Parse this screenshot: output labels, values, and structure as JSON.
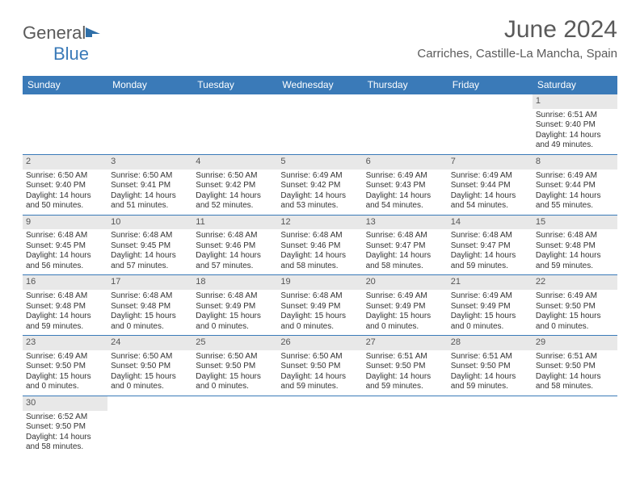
{
  "logo": {
    "textA": "General",
    "textB": "Blue"
  },
  "title": "June 2024",
  "location": "Carriches, Castille-La Mancha, Spain",
  "colors": {
    "header_bg": "#3a7ab8",
    "header_text": "#ffffff",
    "daynum_bg": "#e8e8e8",
    "body_text": "#333333",
    "title_text": "#5a5a5a",
    "row_border": "#3a7ab8"
  },
  "fonts": {
    "title_size": 30,
    "location_size": 15,
    "header_size": 12,
    "cell_size": 10
  },
  "dayNames": [
    "Sunday",
    "Monday",
    "Tuesday",
    "Wednesday",
    "Thursday",
    "Friday",
    "Saturday"
  ],
  "weeks": [
    [
      null,
      null,
      null,
      null,
      null,
      null,
      {
        "d": "1",
        "sr": "Sunrise: 6:51 AM",
        "ss": "Sunset: 9:40 PM",
        "dl": "Daylight: 14 hours and 49 minutes."
      }
    ],
    [
      {
        "d": "2",
        "sr": "Sunrise: 6:50 AM",
        "ss": "Sunset: 9:40 PM",
        "dl": "Daylight: 14 hours and 50 minutes."
      },
      {
        "d": "3",
        "sr": "Sunrise: 6:50 AM",
        "ss": "Sunset: 9:41 PM",
        "dl": "Daylight: 14 hours and 51 minutes."
      },
      {
        "d": "4",
        "sr": "Sunrise: 6:50 AM",
        "ss": "Sunset: 9:42 PM",
        "dl": "Daylight: 14 hours and 52 minutes."
      },
      {
        "d": "5",
        "sr": "Sunrise: 6:49 AM",
        "ss": "Sunset: 9:42 PM",
        "dl": "Daylight: 14 hours and 53 minutes."
      },
      {
        "d": "6",
        "sr": "Sunrise: 6:49 AM",
        "ss": "Sunset: 9:43 PM",
        "dl": "Daylight: 14 hours and 54 minutes."
      },
      {
        "d": "7",
        "sr": "Sunrise: 6:49 AM",
        "ss": "Sunset: 9:44 PM",
        "dl": "Daylight: 14 hours and 54 minutes."
      },
      {
        "d": "8",
        "sr": "Sunrise: 6:49 AM",
        "ss": "Sunset: 9:44 PM",
        "dl": "Daylight: 14 hours and 55 minutes."
      }
    ],
    [
      {
        "d": "9",
        "sr": "Sunrise: 6:48 AM",
        "ss": "Sunset: 9:45 PM",
        "dl": "Daylight: 14 hours and 56 minutes."
      },
      {
        "d": "10",
        "sr": "Sunrise: 6:48 AM",
        "ss": "Sunset: 9:45 PM",
        "dl": "Daylight: 14 hours and 57 minutes."
      },
      {
        "d": "11",
        "sr": "Sunrise: 6:48 AM",
        "ss": "Sunset: 9:46 PM",
        "dl": "Daylight: 14 hours and 57 minutes."
      },
      {
        "d": "12",
        "sr": "Sunrise: 6:48 AM",
        "ss": "Sunset: 9:46 PM",
        "dl": "Daylight: 14 hours and 58 minutes."
      },
      {
        "d": "13",
        "sr": "Sunrise: 6:48 AM",
        "ss": "Sunset: 9:47 PM",
        "dl": "Daylight: 14 hours and 58 minutes."
      },
      {
        "d": "14",
        "sr": "Sunrise: 6:48 AM",
        "ss": "Sunset: 9:47 PM",
        "dl": "Daylight: 14 hours and 59 minutes."
      },
      {
        "d": "15",
        "sr": "Sunrise: 6:48 AM",
        "ss": "Sunset: 9:48 PM",
        "dl": "Daylight: 14 hours and 59 minutes."
      }
    ],
    [
      {
        "d": "16",
        "sr": "Sunrise: 6:48 AM",
        "ss": "Sunset: 9:48 PM",
        "dl": "Daylight: 14 hours and 59 minutes."
      },
      {
        "d": "17",
        "sr": "Sunrise: 6:48 AM",
        "ss": "Sunset: 9:48 PM",
        "dl": "Daylight: 15 hours and 0 minutes."
      },
      {
        "d": "18",
        "sr": "Sunrise: 6:48 AM",
        "ss": "Sunset: 9:49 PM",
        "dl": "Daylight: 15 hours and 0 minutes."
      },
      {
        "d": "19",
        "sr": "Sunrise: 6:48 AM",
        "ss": "Sunset: 9:49 PM",
        "dl": "Daylight: 15 hours and 0 minutes."
      },
      {
        "d": "20",
        "sr": "Sunrise: 6:49 AM",
        "ss": "Sunset: 9:49 PM",
        "dl": "Daylight: 15 hours and 0 minutes."
      },
      {
        "d": "21",
        "sr": "Sunrise: 6:49 AM",
        "ss": "Sunset: 9:49 PM",
        "dl": "Daylight: 15 hours and 0 minutes."
      },
      {
        "d": "22",
        "sr": "Sunrise: 6:49 AM",
        "ss": "Sunset: 9:50 PM",
        "dl": "Daylight: 15 hours and 0 minutes."
      }
    ],
    [
      {
        "d": "23",
        "sr": "Sunrise: 6:49 AM",
        "ss": "Sunset: 9:50 PM",
        "dl": "Daylight: 15 hours and 0 minutes."
      },
      {
        "d": "24",
        "sr": "Sunrise: 6:50 AM",
        "ss": "Sunset: 9:50 PM",
        "dl": "Daylight: 15 hours and 0 minutes."
      },
      {
        "d": "25",
        "sr": "Sunrise: 6:50 AM",
        "ss": "Sunset: 9:50 PM",
        "dl": "Daylight: 15 hours and 0 minutes."
      },
      {
        "d": "26",
        "sr": "Sunrise: 6:50 AM",
        "ss": "Sunset: 9:50 PM",
        "dl": "Daylight: 14 hours and 59 minutes."
      },
      {
        "d": "27",
        "sr": "Sunrise: 6:51 AM",
        "ss": "Sunset: 9:50 PM",
        "dl": "Daylight: 14 hours and 59 minutes."
      },
      {
        "d": "28",
        "sr": "Sunrise: 6:51 AM",
        "ss": "Sunset: 9:50 PM",
        "dl": "Daylight: 14 hours and 59 minutes."
      },
      {
        "d": "29",
        "sr": "Sunrise: 6:51 AM",
        "ss": "Sunset: 9:50 PM",
        "dl": "Daylight: 14 hours and 58 minutes."
      }
    ],
    [
      {
        "d": "30",
        "sr": "Sunrise: 6:52 AM",
        "ss": "Sunset: 9:50 PM",
        "dl": "Daylight: 14 hours and 58 minutes."
      },
      null,
      null,
      null,
      null,
      null,
      null
    ]
  ]
}
